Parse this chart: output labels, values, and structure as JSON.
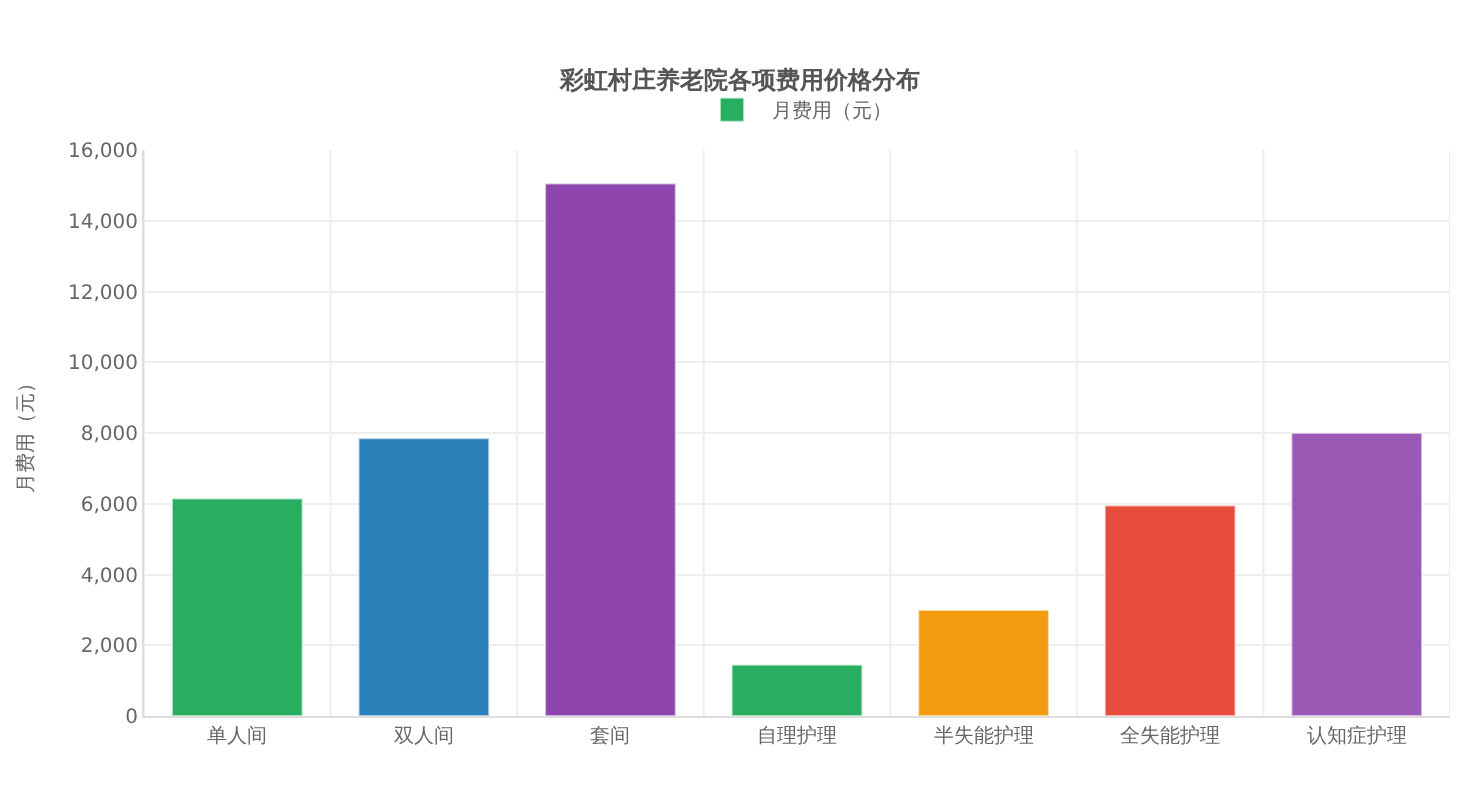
{
  "chart_data": {
    "type": "bar",
    "title": "彩虹村庄养老院各项费用价格分布",
    "ylabel": "月费用（元）",
    "categories": [
      "单人间",
      "双人间",
      "套间",
      "自理护理",
      "半失能护理",
      "全失能护理",
      "认知症护理"
    ],
    "series": [
      {
        "name": "月费用（元）",
        "values": [
          6150,
          7850,
          15050,
          1450,
          3000,
          5950,
          8000
        ],
        "colors": [
          "#27ae60",
          "#2980b9",
          "#8e44ad",
          "#27ae60",
          "#f39c12",
          "#e74c3c",
          "#9b59b6"
        ]
      }
    ],
    "ylim": [
      0,
      16000
    ],
    "yticks": [
      {
        "value": 0,
        "label": "0"
      },
      {
        "value": 2000,
        "label": "2,000"
      },
      {
        "value": 4000,
        "label": "4,000"
      },
      {
        "value": 6000,
        "label": "6,000"
      },
      {
        "value": 8000,
        "label": "8,000"
      },
      {
        "value": 10000,
        "label": "10,000"
      },
      {
        "value": 12000,
        "label": "12,000"
      },
      {
        "value": 14000,
        "label": "14,000"
      },
      {
        "value": 16000,
        "label": "16,000"
      }
    ],
    "grid": true,
    "legend": "top"
  }
}
